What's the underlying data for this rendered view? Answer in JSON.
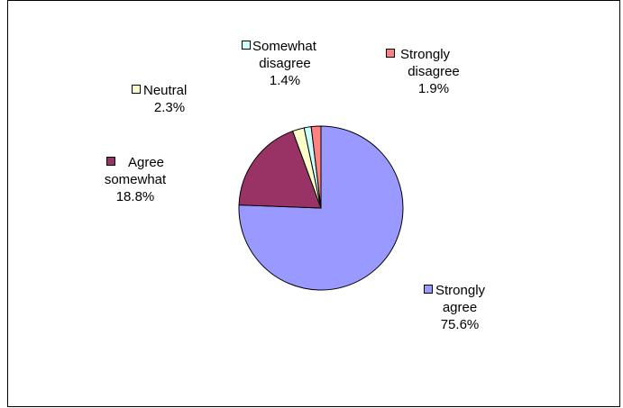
{
  "chart_data": {
    "type": "pie",
    "title": "",
    "start_angle_deg": 90,
    "direction": "clockwise",
    "slices": [
      {
        "label": "Strongly agree",
        "value": 75.6,
        "display": "75.6%",
        "color": "#9999FF"
      },
      {
        "label": "Agree somewhat",
        "value": 18.8,
        "display": "18.8%",
        "color": "#993366"
      },
      {
        "label": "Neutral",
        "value": 2.3,
        "display": "2.3%",
        "color": "#FFFFCC"
      },
      {
        "label": "Somewhat disagree",
        "value": 1.4,
        "display": "1.4%",
        "color": "#CCFFFF"
      },
      {
        "label": "Strongly disagree",
        "value": 1.9,
        "display": "1.9%",
        "color": "#FF8080"
      }
    ],
    "label_lines": {
      "strongly_agree": [
        "Strongly",
        "agree"
      ],
      "agree_somewhat": [
        "Agree",
        "somewhat"
      ],
      "neutral": [
        "Neutral"
      ],
      "somewhat_disagree": [
        "Somewhat",
        "disagree"
      ],
      "strongly_disagree": [
        "Strongly",
        "disagree"
      ]
    },
    "legend": "none",
    "grid": false
  }
}
